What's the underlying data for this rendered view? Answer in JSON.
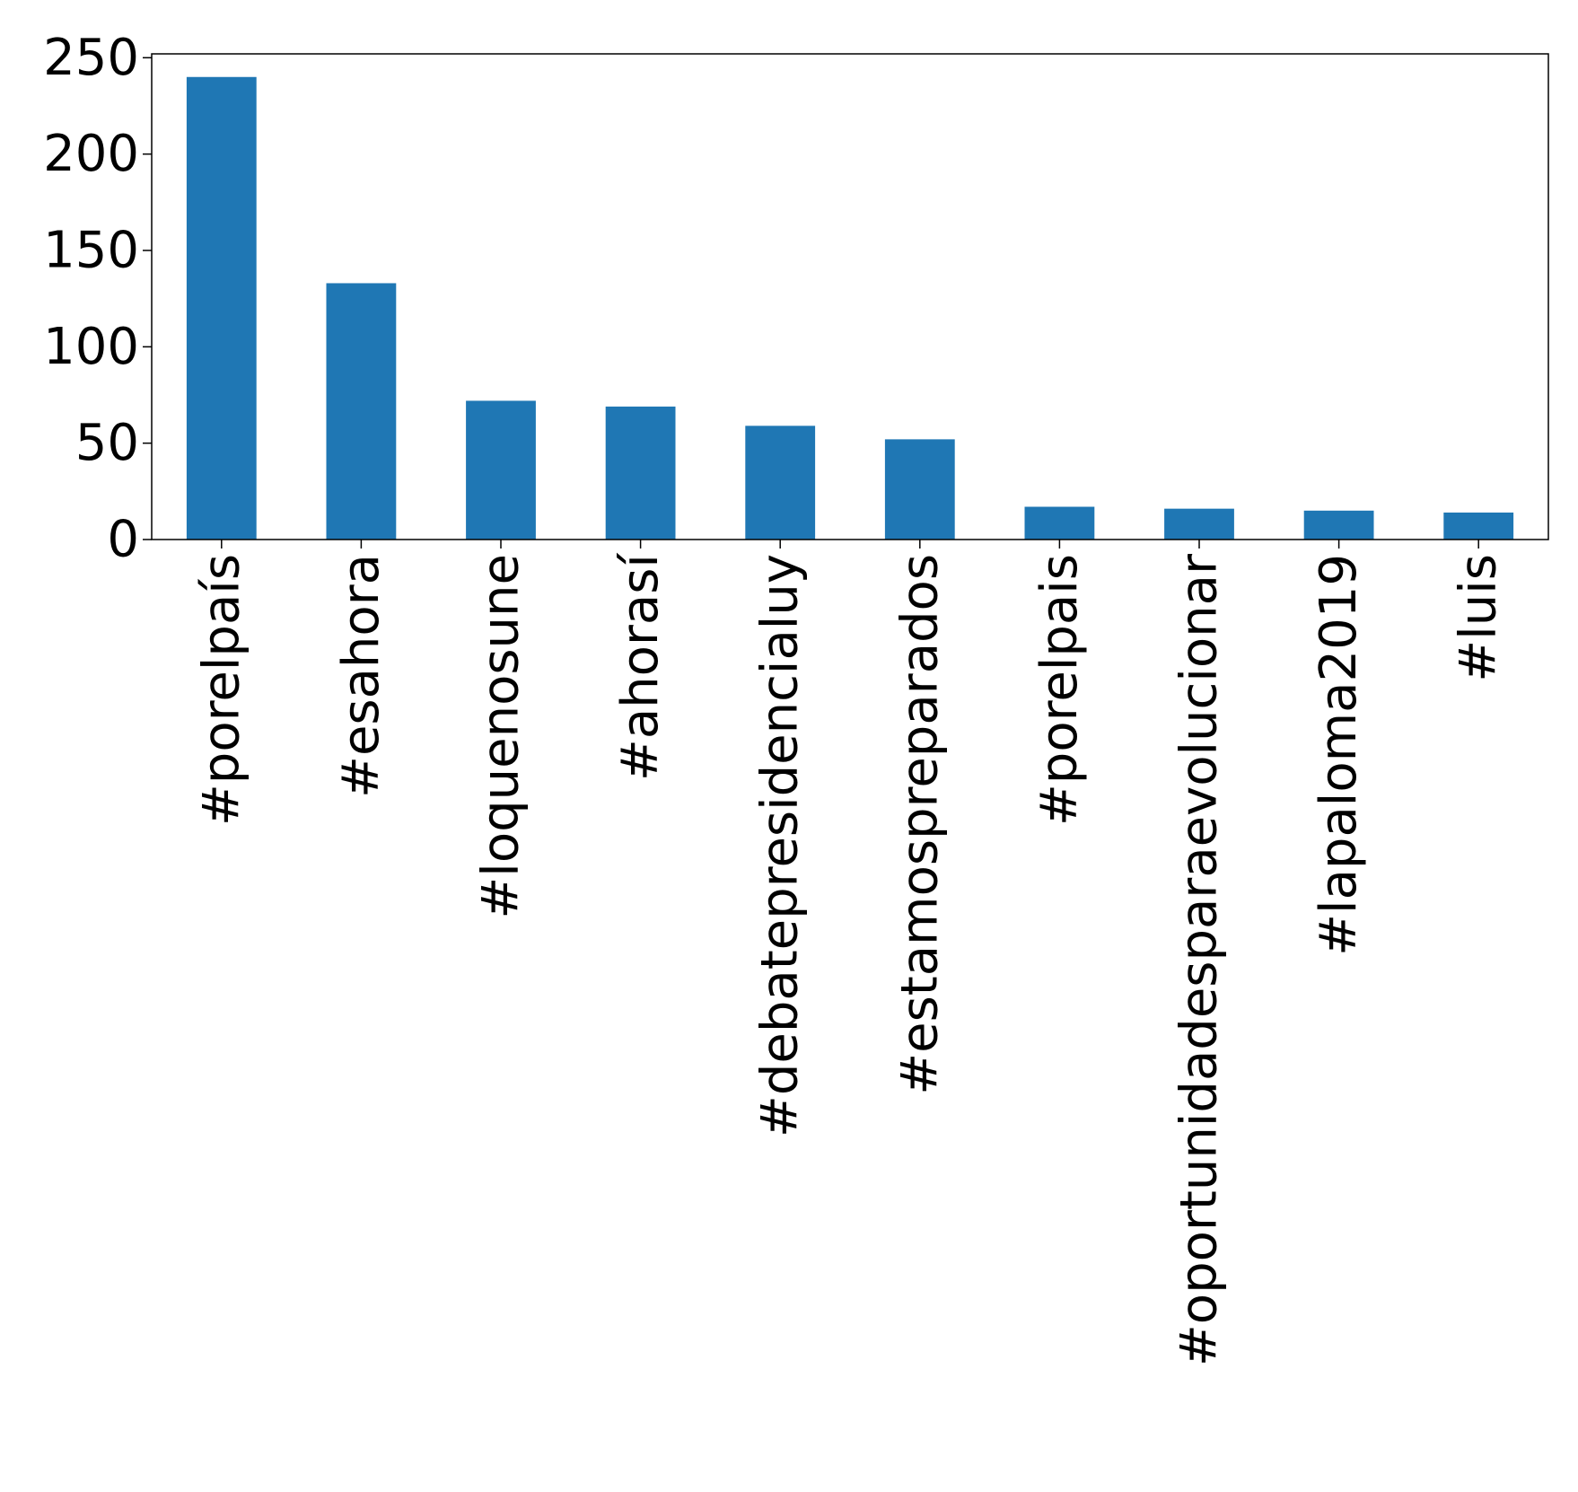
{
  "chart_data": {
    "type": "bar",
    "title": "",
    "xlabel": "",
    "ylabel": "",
    "categories": [
      "#porelpaís",
      "#esahora",
      "#loquenosune",
      "#ahorasí",
      "#debatepresidencialuy",
      "#estamospreparados",
      "#porelpais",
      "#oportunidadesparaevolucionar",
      "#lapaloma2019",
      "#luis"
    ],
    "values": [
      240,
      133,
      72,
      69,
      59,
      52,
      17,
      16,
      15,
      14
    ],
    "ylim": [
      0,
      252
    ],
    "yticks": [
      0,
      50,
      100,
      150,
      200,
      250
    ],
    "bar_color": "#1f77b4",
    "grid": false,
    "legend": "none"
  }
}
